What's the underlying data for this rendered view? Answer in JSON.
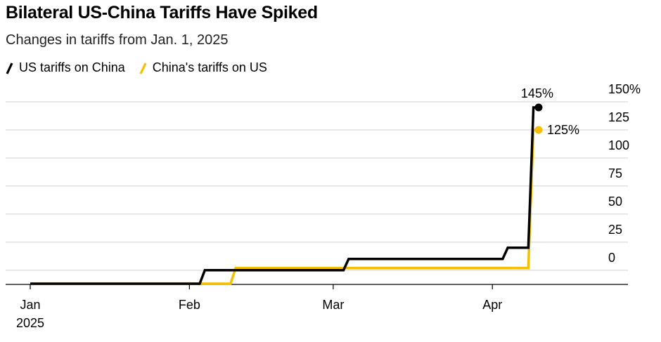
{
  "title": "Bilateral US-China Tariffs Have Spiked",
  "subtitle": "Changes in tariffs from Jan. 1, 2025",
  "colors": {
    "us": "#000000",
    "china": "#f5bf00",
    "grid": "#d0d0d0",
    "axis": "#000000"
  },
  "chart_data": {
    "type": "line",
    "title": "Bilateral US-China Tariffs Have Spiked",
    "subtitle": "Changes in tariffs from Jan. 1, 2025",
    "xlabel": "",
    "ylabel": "",
    "x_type": "date",
    "xlim": [
      "2025-01-01",
      "2025-04-30"
    ],
    "ylim": [
      -12,
      150
    ],
    "y_ticks": [
      {
        "value": 150,
        "label": "150%"
      },
      {
        "value": 125,
        "label": "125"
      },
      {
        "value": 100,
        "label": "100"
      },
      {
        "value": 75,
        "label": "75"
      },
      {
        "value": 50,
        "label": "50"
      },
      {
        "value": 25,
        "label": "25"
      },
      {
        "value": 0,
        "label": "0"
      }
    ],
    "x_ticks": [
      {
        "date": "2025-01-01",
        "label": "Jan",
        "sublabel": "2025"
      },
      {
        "date": "2025-02-01",
        "label": "Feb",
        "sublabel": ""
      },
      {
        "date": "2025-03-01",
        "label": "Mar",
        "sublabel": ""
      },
      {
        "date": "2025-04-01",
        "label": "Apr",
        "sublabel": ""
      }
    ],
    "grid": true,
    "legend_position": "top-left",
    "series": [
      {
        "name": "US tariffs on China",
        "color": "#000000",
        "points": [
          [
            "2025-01-01",
            -12
          ],
          [
            "2025-02-03",
            -12
          ],
          [
            "2025-02-04",
            0
          ],
          [
            "2025-03-03",
            0
          ],
          [
            "2025-03-04",
            10
          ],
          [
            "2025-04-03",
            10
          ],
          [
            "2025-04-04",
            20
          ],
          [
            "2025-04-08",
            20
          ],
          [
            "2025-04-09",
            145
          ],
          [
            "2025-04-10",
            145
          ]
        ],
        "end_label": "145%"
      },
      {
        "name": "China's tariffs on US",
        "color": "#f5bf00",
        "points": [
          [
            "2025-01-01",
            -12
          ],
          [
            "2025-02-09",
            -12
          ],
          [
            "2025-02-10",
            2
          ],
          [
            "2025-04-08",
            2
          ],
          [
            "2025-04-09",
            125
          ],
          [
            "2025-04-10",
            125
          ]
        ],
        "end_label": "125%"
      }
    ]
  }
}
